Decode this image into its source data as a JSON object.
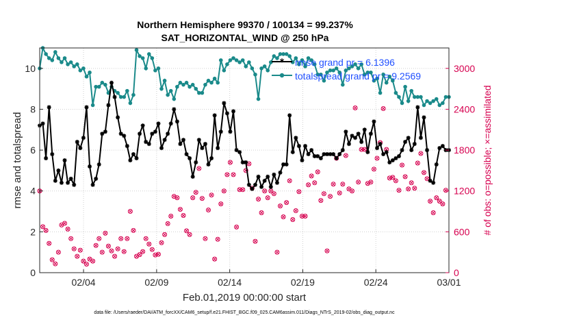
{
  "colors": {
    "rmse": "#000000",
    "spread": "#1a8a8a",
    "obs": "#d6004f",
    "legend_text": "#1f4fff"
  },
  "chart_data": {
    "type": "line",
    "title": "Northern Hemisphere 99370 / 100134 = 99.237%",
    "subtitle": "SAT_HORIZONTAL_WIND @ 250 hPa",
    "xlabel": "Feb.01,2019 00:00:00 start",
    "ylabel": "rmse and totalspread",
    "ylabel_right": "# of obs: o=possible; ×=assimilated",
    "footnote": "data file: /Users/raeder/DAI/ATM_forcXX/CAM6_setup/f.e21.FHIST_BGC.f09_025.CAM6assim.011/Diags_NTrS_2019-02/obs_diag_output.nc",
    "xlim": [
      0,
      28
    ],
    "ylim": [
      0,
      11
    ],
    "ylim_right": [
      0,
      3300
    ],
    "xticks": [
      3,
      8,
      13,
      18,
      23,
      28
    ],
    "xtick_labels": [
      "02/04",
      "02/09",
      "02/14",
      "02/19",
      "02/24",
      "03/01"
    ],
    "yticks": [
      0,
      2,
      4,
      6,
      8,
      10
    ],
    "ytick_labels": [
      "0",
      "2",
      "4",
      "6",
      "8",
      "10"
    ],
    "yticks_right": [
      0,
      600,
      1200,
      1800,
      2400,
      3000
    ],
    "ytick_labels_right": [
      "0",
      "600",
      "1200",
      "1800",
      "2400",
      "3000"
    ],
    "legend": [
      "rmse grand pr = 6.1396",
      "totalspread grand pr = 9.2569"
    ],
    "legend_position": "top-right",
    "series": [
      {
        "name": "rmse",
        "values": [
          7.2,
          7.3,
          5.6,
          8.1,
          5.8,
          4.5,
          5.0,
          4.4,
          5.5,
          4.4,
          4.6,
          4.3,
          6.4,
          6.1,
          6.6,
          8.1,
          5.2,
          4.3,
          4.6,
          5.3,
          6.8,
          6.9,
          8.2,
          9.3,
          8.6,
          7.6,
          6.8,
          6.7,
          6.2,
          5.5,
          5.8,
          5.6,
          6.8,
          7.2,
          6.4,
          6.3,
          6.8,
          6.9,
          7.3,
          6.1,
          6.5,
          6.8,
          7.3,
          8.0,
          7.4,
          6.3,
          6.5,
          5.8,
          5.6,
          4.7,
          5.4,
          6.5,
          6.1,
          6.3,
          5.3,
          5.6,
          7.7,
          6.1,
          6.9,
          8.3,
          7.8,
          6.9,
          7.9,
          6.0,
          5.9,
          5.4,
          5.4,
          4.3,
          4.1,
          4.3,
          4.7,
          4.2,
          4.5,
          4.7,
          4.2,
          4.8,
          4.4,
          4.9,
          5.3,
          5.3,
          7.7,
          5.9,
          6.6,
          6.2,
          5.5,
          6.2,
          5.8,
          6.0,
          5.7,
          5.7,
          5.6,
          5.8,
          5.8,
          5.8,
          5.8,
          5.6,
          5.8,
          6.0,
          6.9,
          6.3,
          6.7,
          6.6,
          6.8,
          6.4,
          7.0,
          5.9,
          6.8,
          7.4,
          6.1,
          6.3,
          5.8,
          5.9,
          5.4,
          5.5,
          5.6,
          5.7,
          6.0,
          6.4,
          6.6,
          6.0,
          6.3,
          8.1,
          6.6,
          7.6,
          6.0,
          4.5,
          4.4,
          5.3,
          6.1,
          6.2,
          6.0,
          6.0
        ]
      },
      {
        "name": "totalspread",
        "values": [
          10.0,
          11.0,
          10.7,
          10.5,
          10.4,
          10.8,
          10.5,
          10.3,
          10.5,
          10.2,
          10.3,
          10.1,
          10.2,
          9.9,
          10.0,
          9.6,
          9.8,
          8.2,
          9.1,
          9.1,
          9.3,
          9.2,
          8.8,
          9.1,
          8.9,
          8.8,
          8.6,
          8.6,
          8.9,
          8.3,
          8.7,
          10.9,
          10.6,
          10.5,
          10.0,
          10.7,
          10.5,
          9.9,
          10.0,
          9.0,
          9.4,
          8.7,
          8.9,
          8.5,
          9.1,
          9.3,
          9.2,
          9.3,
          9.1,
          9.2,
          9.0,
          8.8,
          8.8,
          9.2,
          9.4,
          9.3,
          9.5,
          9.3,
          10.4,
          9.9,
          10.2,
          10.4,
          10.5,
          10.4,
          10.3,
          10.4,
          10.1,
          10.3,
          10.0,
          9.7,
          8.5,
          10.0,
          10.1,
          9.9,
          10.3,
          10.6,
          10.5,
          10.7,
          10.7,
          10.7,
          10.6,
          10.3,
          10.5,
          10.2,
          10.4,
          10.1,
          10.5,
          10.4,
          10.2,
          9.7,
          9.7,
          9.4,
          9.8,
          9.9,
          9.9,
          10.0,
          9.8,
          9.2,
          9.9,
          10.0,
          10.1,
          10.2,
          10.0,
          10.2,
          9.7,
          9.8,
          9.8,
          9.4,
          9.5,
          8.8,
          9.7,
          9.3,
          9.6,
          9.4,
          8.8,
          8.6,
          8.3,
          9.1,
          8.4,
          8.9,
          8.6,
          8.6,
          8.6,
          8.2,
          8.4,
          8.3,
          8.4,
          8.5,
          8.2,
          8.3,
          8.6,
          8.6
        ]
      },
      {
        "name": "obs_possible",
        "values": [
          1200,
          675,
          620,
          430,
          190,
          130,
          300,
          700,
          725,
          640,
          500,
          350,
          240,
          330,
          170,
          125,
          200,
          170,
          400,
          500,
          300,
          580,
          390,
          320,
          240,
          350,
          500,
          310,
          500,
          900,
          620,
          240,
          265,
          310,
          500,
          420,
          340,
          260,
          270,
          440,
          560,
          720,
          830,
          1120,
          1100,
          930,
          840,
          615,
          560,
          1100,
          1180,
          1530,
          1090,
          500,
          920,
          1140,
          200,
          490,
          1010,
          1200,
          1440,
          1620,
          1440,
          670,
          1220,
          1220,
          1500,
          1600,
          1240,
          460,
          1080,
          880,
          1200,
          1100,
          1200,
          1160,
          300,
          980,
          820,
          1030,
          1350,
          780,
          910,
          1190,
          830,
          830,
          1290,
          1420,
          1320,
          1480,
          1060,
          1160,
          320,
          1120,
          1300,
          1680,
          1170,
          1300,
          1720,
          1230,
          1200,
          2420,
          1330,
          1810,
          1810,
          1310,
          1330,
          1520,
          1680,
          1910,
          2410,
          1810,
          1390,
          1400,
          1350,
          1210,
          1580,
          1410,
          1230,
          1320,
          1240,
          1610,
          1750,
          1470,
          1380,
          1050,
          880,
          1100,
          1050,
          1010,
          1210
        ]
      }
    ]
  }
}
